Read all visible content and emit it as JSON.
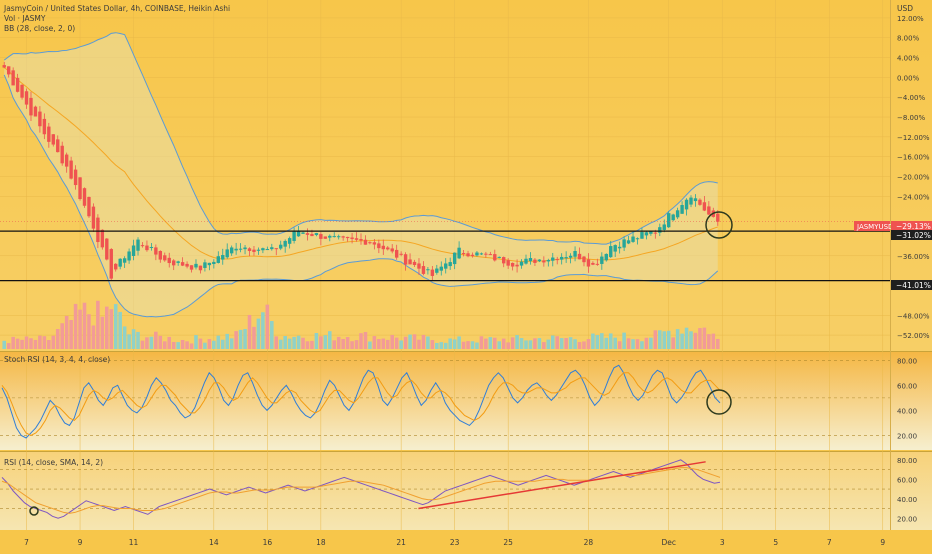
{
  "header": {
    "title": "JasmyCoin / United States Dollar, 4h, COINBASE, Heikin Ashi",
    "vol_label": "Vol · JASMY",
    "bb_label": "BB (28, close, 2, 0)",
    "stoch_label": "Stoch RSI (14, 3, 4, 4, close)",
    "rsi_label": "RSI (14, close, SMA, 14, 2)"
  },
  "price_axis": {
    "currency": "USD",
    "ticks": [
      "12.00%",
      "8.00%",
      "4.00%",
      "0.00%",
      "−4.00%",
      "−8.00%",
      "−12.00%",
      "−16.00%",
      "−20.00%",
      "−24.00%",
      "−36.00%",
      "−48.00%",
      "−52.00%"
    ],
    "symbol_tag": "JASMYUSD",
    "last_value": "−29.13%",
    "line1_value": "−31.02%",
    "line2_value": "−41.01%"
  },
  "stoch_axis": {
    "ticks": [
      "80.00",
      "60.00",
      "40.00",
      "20.00"
    ]
  },
  "rsi_axis": {
    "ticks": [
      "80.00",
      "60.00",
      "40.00",
      "20.00"
    ]
  },
  "time_axis": {
    "ticks": [
      "7",
      "9",
      "11",
      "14",
      "16",
      "18",
      "21",
      "23",
      "25",
      "28",
      "Dec",
      "3",
      "5",
      "7",
      "9"
    ]
  },
  "colors": {
    "background": "#f7c64a",
    "up": "#26a69a",
    "down": "#ef5350",
    "bb_band": "#5b9bd5",
    "bb_basis": "#f5a623",
    "stoch_k": "#2f7ed8",
    "stoch_d": "#f39c12",
    "rsi": "#7e57c2",
    "trendline": "#e53935",
    "tag": "#ef5350"
  },
  "chart_data": [
    {
      "type": "candlestick",
      "title": "JasmyCoin / United States Dollar, 4h, COINBASE, Heikin Ashi",
      "ylabel": "USD",
      "y_unit": "percent change",
      "x_unit": "4h bar index",
      "ylim": [
        -54,
        14
      ],
      "x_ticks": [
        {
          "label": "7",
          "bar": 5
        },
        {
          "label": "9",
          "bar": 17
        },
        {
          "label": "11",
          "bar": 29
        },
        {
          "label": "14",
          "bar": 47
        },
        {
          "label": "16",
          "bar": 59
        },
        {
          "label": "18",
          "bar": 71
        },
        {
          "label": "21",
          "bar": 89
        },
        {
          "label": "23",
          "bar": 101
        },
        {
          "label": "25",
          "bar": 113
        },
        {
          "label": "28",
          "bar": 131
        },
        {
          "label": "Dec",
          "bar": 149
        },
        {
          "label": "3",
          "bar": 161
        },
        {
          "label": "5",
          "bar": 173
        },
        {
          "label": "7",
          "bar": 185
        },
        {
          "label": "9",
          "bar": 197
        }
      ],
      "horizontal_lines": [
        -31.02,
        -41.01
      ],
      "last_value": -29.13,
      "ohlc_anchors": [
        {
          "bar": 0,
          "close": 2
        },
        {
          "bar": 8,
          "close": -10
        },
        {
          "bar": 14,
          "close": -18
        },
        {
          "bar": 20,
          "close": -30
        },
        {
          "bar": 24,
          "close": -40
        },
        {
          "bar": 27,
          "close": -36
        },
        {
          "bar": 30,
          "close": -33
        },
        {
          "bar": 36,
          "close": -37
        },
        {
          "bar": 44,
          "close": -38.5
        },
        {
          "bar": 52,
          "close": -34
        },
        {
          "bar": 60,
          "close": -35
        },
        {
          "bar": 66,
          "close": -31
        },
        {
          "bar": 76,
          "close": -33
        },
        {
          "bar": 82,
          "close": -33
        },
        {
          "bar": 90,
          "close": -37
        },
        {
          "bar": 96,
          "close": -40
        },
        {
          "bar": 102,
          "close": -35
        },
        {
          "bar": 108,
          "close": -36
        },
        {
          "bar": 114,
          "close": -37.5
        },
        {
          "bar": 122,
          "close": -36.5
        },
        {
          "bar": 128,
          "close": -35.5
        },
        {
          "bar": 132,
          "close": -38
        },
        {
          "bar": 136,
          "close": -34
        },
        {
          "bar": 146,
          "close": -31
        },
        {
          "bar": 150,
          "close": -27
        },
        {
          "bar": 154,
          "close": -23.5
        },
        {
          "bar": 159,
          "close": -28.8
        },
        {
          "bar": 160,
          "close": -29.13
        }
      ],
      "volume_anchors": [
        {
          "bar": 0,
          "v": 0.2
        },
        {
          "bar": 10,
          "v": 0.22
        },
        {
          "bar": 17,
          "v": 0.8
        },
        {
          "bar": 20,
          "v": 0.85
        },
        {
          "bar": 22,
          "v": 0.7
        },
        {
          "bar": 24,
          "v": 1.0
        },
        {
          "bar": 28,
          "v": 0.35
        },
        {
          "bar": 40,
          "v": 0.2
        },
        {
          "bar": 52,
          "v": 0.3
        },
        {
          "bar": 58,
          "v": 0.9
        },
        {
          "bar": 62,
          "v": 0.3
        },
        {
          "bar": 80,
          "v": 0.3
        },
        {
          "bar": 100,
          "v": 0.2
        },
        {
          "bar": 130,
          "v": 0.25
        },
        {
          "bar": 146,
          "v": 0.3
        },
        {
          "bar": 152,
          "v": 0.5
        },
        {
          "bar": 158,
          "v": 0.45
        },
        {
          "bar": 160,
          "v": 0.2
        }
      ]
    },
    {
      "type": "line",
      "title": "Stoch RSI (14, 3, 4, 4, close)",
      "ylim": [
        10,
        85
      ],
      "series": [
        {
          "key": "k",
          "values": [
            58,
            50,
            38,
            26,
            20,
            18,
            22,
            26,
            32,
            40,
            48,
            44,
            36,
            30,
            28,
            34,
            46,
            58,
            62,
            56,
            48,
            44,
            50,
            58,
            60,
            52,
            44,
            40,
            38,
            42,
            50,
            60,
            66,
            62,
            56,
            48,
            44,
            38,
            34,
            36,
            42,
            52,
            62,
            70,
            66,
            58,
            48,
            44,
            50,
            60,
            68,
            70,
            62,
            52,
            44,
            40,
            44,
            50,
            56,
            60,
            54,
            46,
            40,
            36,
            34,
            38,
            46,
            56,
            64,
            60,
            52,
            44,
            40,
            46,
            56,
            66,
            72,
            70,
            60,
            48,
            44,
            50,
            58,
            66,
            70,
            62,
            52,
            44,
            48,
            56,
            62,
            56,
            46,
            40,
            36,
            32,
            30,
            28,
            32,
            40,
            50,
            60,
            66,
            70,
            66,
            58,
            50,
            46,
            50,
            56,
            60,
            62,
            58,
            52,
            48,
            52,
            58,
            64,
            70,
            72,
            68,
            60,
            50,
            44,
            48,
            56,
            66,
            74,
            76,
            70,
            60,
            52,
            48,
            52,
            60,
            68,
            72,
            70,
            60,
            50,
            46,
            50,
            56,
            64,
            70,
            72,
            66,
            58,
            50,
            46
          ]
        },
        {
          "key": "d",
          "values": [
            60,
            55,
            46,
            36,
            28,
            22,
            20,
            22,
            26,
            32,
            40,
            44,
            42,
            38,
            34,
            32,
            36,
            44,
            52,
            56,
            54,
            50,
            48,
            50,
            54,
            56,
            52,
            48,
            44,
            42,
            44,
            50,
            56,
            60,
            60,
            56,
            52,
            46,
            42,
            38,
            38,
            42,
            48,
            56,
            62,
            62,
            58,
            52,
            48,
            50,
            56,
            62,
            66,
            62,
            56,
            50,
            46,
            46,
            50,
            54,
            56,
            54,
            48,
            44,
            40,
            38,
            40,
            46,
            52,
            56,
            56,
            52,
            48,
            46,
            50,
            56,
            62,
            66,
            66,
            60,
            54,
            50,
            52,
            58,
            62,
            64,
            60,
            54,
            50,
            50,
            54,
            56,
            54,
            50,
            44,
            40,
            36,
            34,
            32,
            34,
            38,
            44,
            52,
            58,
            62,
            62,
            60,
            56,
            54,
            54,
            56,
            58,
            58,
            56,
            54,
            54,
            56,
            58,
            62,
            64,
            66,
            66,
            62,
            58,
            54,
            52,
            54,
            60,
            66,
            70,
            70,
            66,
            60,
            56,
            54,
            56,
            60,
            64,
            66,
            64,
            60,
            56,
            54,
            54,
            58,
            62,
            64,
            64,
            60,
            56
          ]
        }
      ]
    },
    {
      "type": "line",
      "title": "RSI (14, close, SMA, 14, 2)",
      "ylim": [
        10,
        85
      ],
      "series": [
        {
          "key": "rsi",
          "values": [
            62,
            56,
            48,
            42,
            36,
            32,
            30,
            28,
            26,
            22,
            20,
            22,
            26,
            30,
            34,
            38,
            36,
            34,
            32,
            30,
            28,
            30,
            32,
            30,
            28,
            26,
            24,
            28,
            32,
            34,
            36,
            38,
            40,
            42,
            44,
            46,
            48,
            50,
            48,
            46,
            44,
            46,
            48,
            50,
            52,
            50,
            48,
            46,
            48,
            50,
            52,
            54,
            52,
            50,
            48,
            50,
            52,
            54,
            56,
            58,
            60,
            62,
            60,
            58,
            56,
            54,
            52,
            50,
            48,
            46,
            44,
            42,
            40,
            38,
            36,
            34,
            36,
            40,
            44,
            48,
            50,
            52,
            54,
            56,
            58,
            60,
            62,
            64,
            62,
            60,
            58,
            56,
            54,
            56,
            58,
            60,
            62,
            64,
            62,
            60,
            58,
            56,
            54,
            56,
            58,
            60,
            62,
            64,
            66,
            68,
            66,
            64,
            62,
            64,
            66,
            68,
            70,
            72,
            74,
            76,
            78,
            80,
            76,
            70,
            64,
            60,
            58,
            56,
            57
          ]
        },
        {
          "key": "sma",
          "values": [
            58,
            56,
            52,
            48,
            44,
            40,
            36,
            34,
            32,
            30,
            28,
            26,
            25,
            26,
            28,
            30,
            32,
            33,
            33,
            32,
            31,
            30,
            30,
            30,
            29,
            28,
            28,
            28,
            29,
            30,
            32,
            34,
            36,
            38,
            40,
            42,
            44,
            46,
            47,
            47,
            47,
            46,
            46,
            47,
            48,
            49,
            49,
            49,
            49,
            50,
            51,
            52,
            52,
            52,
            52,
            52,
            52,
            53,
            54,
            55,
            56,
            57,
            58,
            58,
            58,
            57,
            56,
            55,
            54,
            52,
            50,
            48,
            46,
            44,
            42,
            40,
            39,
            39,
            40,
            42,
            44,
            46,
            48,
            50,
            52,
            54,
            56,
            57,
            58,
            58,
            58,
            58,
            58,
            58,
            58,
            58,
            59,
            60,
            60,
            60,
            60,
            59,
            59,
            59,
            59,
            59,
            60,
            61,
            62,
            63,
            64,
            64,
            64,
            64,
            65,
            66,
            67,
            68,
            69,
            70,
            71,
            72,
            72,
            71,
            70,
            68,
            66,
            64,
            62
          ]
        }
      ],
      "trendline": [
        [
          0.58,
          30
        ],
        [
          0.98,
          78
        ]
      ]
    }
  ]
}
